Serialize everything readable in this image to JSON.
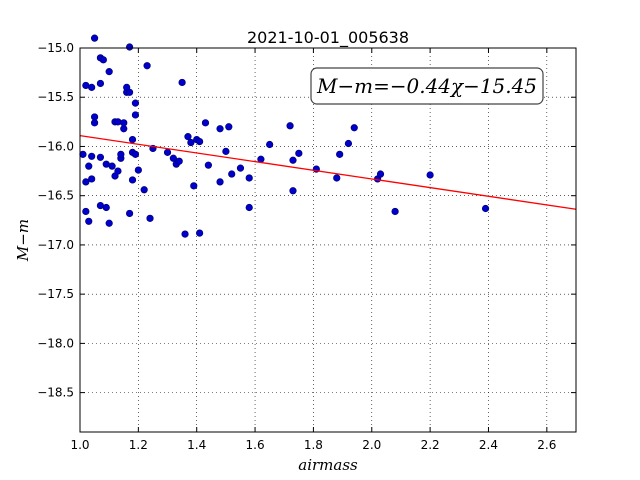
{
  "chart_data": {
    "type": "scatter",
    "title": "2021-10-01_005638",
    "xlabel": "airmass",
    "ylabel": "M−m",
    "xlim": [
      1.0,
      2.7
    ],
    "ylim": [
      -15.0,
      -18.9
    ],
    "ylim_note": "y axis inverted",
    "x_ticks": [
      1.0,
      1.2,
      1.4,
      1.6,
      1.8,
      2.0,
      2.2,
      2.4,
      2.6
    ],
    "x_tick_labels": [
      "1.0",
      "1.2",
      "1.4",
      "1.6",
      "1.8",
      "2.0",
      "2.2",
      "2.4",
      "2.6"
    ],
    "y_ticks": [
      -15.0,
      -15.5,
      -16.0,
      -16.5,
      -17.0,
      -17.5,
      -18.0,
      -18.5
    ],
    "y_tick_labels": [
      "−15.0",
      "−15.5",
      "−16.0",
      "−16.5",
      "−17.0",
      "−17.5",
      "−18.0",
      "−18.5"
    ],
    "grid": true,
    "annotation": "M−m=−0.44χ−15.45",
    "point_color": "#0000cc",
    "fit_color": "#ff0000",
    "fit": {
      "slope": -0.44,
      "intercept": -15.45
    },
    "points": [
      [
        1.01,
        -16.08
      ],
      [
        1.02,
        -16.66
      ],
      [
        1.02,
        -16.36
      ],
      [
        1.03,
        -16.76
      ],
      [
        1.03,
        -16.2
      ],
      [
        1.02,
        -15.38
      ],
      [
        1.04,
        -15.4
      ],
      [
        1.04,
        -16.33
      ],
      [
        1.05,
        -14.9
      ],
      [
        1.05,
        -15.7
      ],
      [
        1.05,
        -15.76
      ],
      [
        1.04,
        -16.1
      ],
      [
        1.07,
        -15.1
      ],
      [
        1.08,
        -15.12
      ],
      [
        1.07,
        -15.36
      ],
      [
        1.07,
        -16.11
      ],
      [
        1.07,
        -16.6
      ],
      [
        1.09,
        -16.18
      ],
      [
        1.09,
        -16.62
      ],
      [
        1.1,
        -16.78
      ],
      [
        1.1,
        -15.24
      ],
      [
        1.11,
        -16.2
      ],
      [
        1.12,
        -15.75
      ],
      [
        1.12,
        -16.3
      ],
      [
        1.13,
        -16.25
      ],
      [
        1.13,
        -15.75
      ],
      [
        1.14,
        -16.12
      ],
      [
        1.14,
        -16.08
      ],
      [
        1.15,
        -15.82
      ],
      [
        1.15,
        -15.76
      ],
      [
        1.16,
        -15.45
      ],
      [
        1.16,
        -15.4
      ],
      [
        1.17,
        -14.99
      ],
      [
        1.17,
        -15.45
      ],
      [
        1.17,
        -16.68
      ],
      [
        1.18,
        -15.93
      ],
      [
        1.18,
        -16.06
      ],
      [
        1.18,
        -16.34
      ],
      [
        1.19,
        -16.08
      ],
      [
        1.19,
        -15.56
      ],
      [
        1.19,
        -15.68
      ],
      [
        1.2,
        -16.24
      ],
      [
        1.22,
        -16.44
      ],
      [
        1.23,
        -15.18
      ],
      [
        1.24,
        -16.73
      ],
      [
        1.25,
        -16.02
      ],
      [
        1.3,
        -16.06
      ],
      [
        1.32,
        -16.12
      ],
      [
        1.33,
        -16.18
      ],
      [
        1.34,
        -16.15
      ],
      [
        1.35,
        -15.35
      ],
      [
        1.36,
        -16.89
      ],
      [
        1.37,
        -15.9
      ],
      [
        1.38,
        -15.96
      ],
      [
        1.39,
        -16.4
      ],
      [
        1.4,
        -15.93
      ],
      [
        1.41,
        -15.95
      ],
      [
        1.41,
        -16.88
      ],
      [
        1.43,
        -15.76
      ],
      [
        1.44,
        -16.19
      ],
      [
        1.48,
        -15.82
      ],
      [
        1.48,
        -16.36
      ],
      [
        1.5,
        -16.05
      ],
      [
        1.51,
        -15.8
      ],
      [
        1.52,
        -16.28
      ],
      [
        1.55,
        -16.22
      ],
      [
        1.58,
        -16.32
      ],
      [
        1.58,
        -16.62
      ],
      [
        1.62,
        -16.13
      ],
      [
        1.65,
        -15.98
      ],
      [
        1.72,
        -15.79
      ],
      [
        1.73,
        -16.14
      ],
      [
        1.73,
        -16.45
      ],
      [
        1.75,
        -16.07
      ],
      [
        1.81,
        -16.23
      ],
      [
        1.88,
        -16.32
      ],
      [
        1.89,
        -16.08
      ],
      [
        1.92,
        -15.97
      ],
      [
        1.94,
        -15.81
      ],
      [
        2.02,
        -16.33
      ],
      [
        2.03,
        -16.28
      ],
      [
        2.08,
        -16.66
      ],
      [
        2.2,
        -16.29
      ],
      [
        2.39,
        -16.63
      ]
    ]
  }
}
